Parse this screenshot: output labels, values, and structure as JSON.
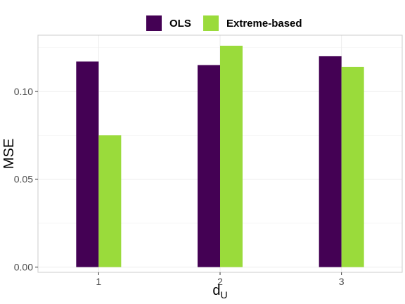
{
  "chart_data": {
    "type": "bar",
    "categories": [
      "1",
      "2",
      "3"
    ],
    "series": [
      {
        "name": "OLS",
        "color": "#440154",
        "values": [
          0.117,
          0.115,
          0.12
        ]
      },
      {
        "name": "Extreme-based",
        "color": "#9ADB3B",
        "values": [
          0.075,
          0.126,
          0.114
        ]
      }
    ],
    "xlabel": "d",
    "xlabel_subscript": "U",
    "ylabel": "MSE",
    "ylim": [
      -0.003,
      0.132
    ],
    "yticks": [
      0.0,
      0.05,
      0.1
    ],
    "ytick_labels": [
      "0.00",
      "0.05",
      "0.10"
    ],
    "grid": true,
    "legend_position": "top"
  }
}
